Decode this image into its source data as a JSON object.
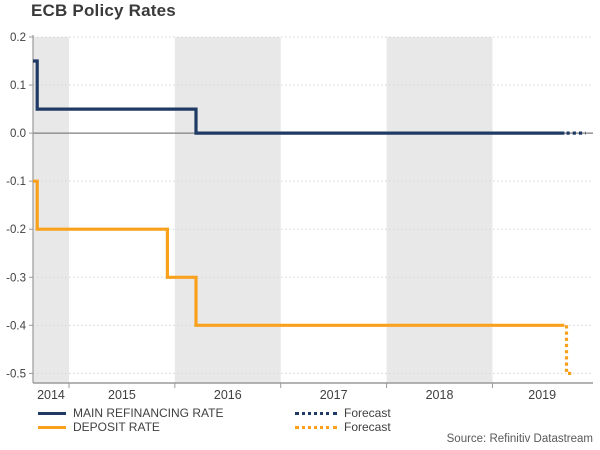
{
  "chart_data": {
    "type": "line",
    "title": "ECB Policy Rates",
    "source": "Source: Refinitiv Datastream",
    "x_axis": {
      "range": [
        2014.66,
        2019.95
      ],
      "ticks": [
        2015,
        2016,
        2017,
        2018,
        2019
      ],
      "labels": [
        "2014",
        "2015",
        "2016",
        "2017",
        "2018",
        "2019"
      ],
      "label_positions": [
        2014.83,
        2015.5,
        2016.5,
        2017.5,
        2018.5,
        2019.47
      ]
    },
    "y_axis": {
      "range": [
        -0.52,
        0.2
      ],
      "ticks": [
        0.2,
        0.1,
        0.0,
        -0.1,
        -0.2,
        -0.3,
        -0.4,
        -0.5
      ],
      "tick_labels": [
        "0.2",
        "0.1",
        "0.0",
        "-0.1",
        "-0.2",
        "-0.3",
        "-0.4",
        "-0.5"
      ]
    },
    "zero_line": 0.0,
    "bands": [
      [
        2014.66,
        2015
      ],
      [
        2016,
        2017
      ],
      [
        2018,
        2019
      ]
    ],
    "series": [
      {
        "name": "MAIN REFINANCING RATE",
        "color": "#1f3a64",
        "style": "solid",
        "points": [
          [
            2014.66,
            0.15
          ],
          [
            2014.7,
            0.15
          ],
          [
            2014.7,
            0.05
          ],
          [
            2016.2,
            0.05
          ],
          [
            2016.2,
            0.0
          ],
          [
            2019.68,
            0.0
          ]
        ]
      },
      {
        "name": "Forecast",
        "color": "#1f3a64",
        "style": "dotted",
        "points": [
          [
            2019.7,
            0.0
          ],
          [
            2019.88,
            0.0
          ]
        ]
      },
      {
        "name": "DEPOSIT RATE",
        "color": "#f9a11c",
        "style": "solid",
        "points": [
          [
            2014.66,
            -0.1
          ],
          [
            2014.7,
            -0.1
          ],
          [
            2014.7,
            -0.2
          ],
          [
            2015.93,
            -0.2
          ],
          [
            2015.93,
            -0.3
          ],
          [
            2016.2,
            -0.3
          ],
          [
            2016.2,
            -0.4
          ],
          [
            2019.68,
            -0.4
          ]
        ]
      },
      {
        "name": "Forecast",
        "color": "#f9a11c",
        "style": "dotted",
        "points": [
          [
            2019.7,
            -0.4
          ],
          [
            2019.7,
            -0.5
          ],
          [
            2019.77,
            -0.5
          ]
        ]
      }
    ],
    "colors": {
      "band": "#e8e8e8",
      "gridline": "#d5d5d5",
      "zero_line": "#7f7f7f",
      "axis": "#9a9a9a",
      "tick_text": "#404040",
      "title_text": "#3a3a3a",
      "source_text": "#595959"
    },
    "legend_position": "bottom"
  }
}
